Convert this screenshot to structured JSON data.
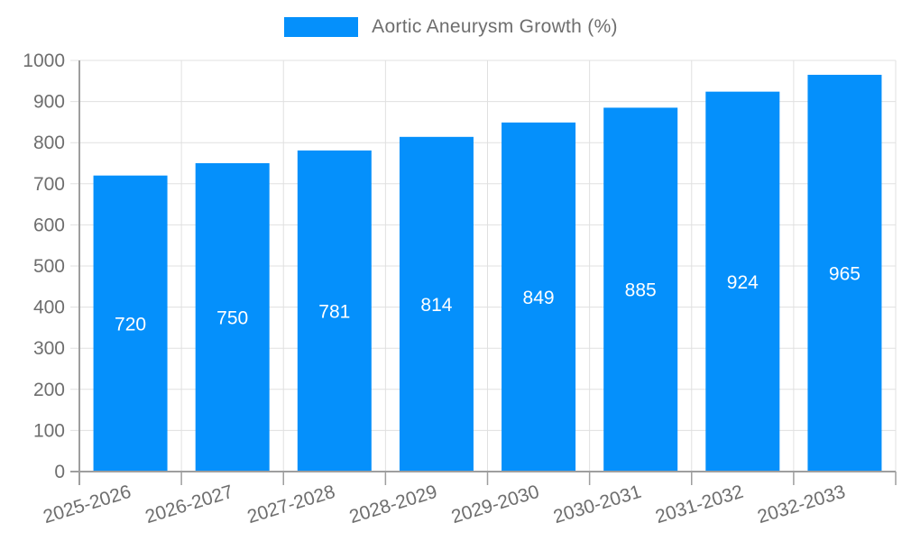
{
  "legend": {
    "label": "Aortic Aneurysm Growth (%)"
  },
  "chart_data": {
    "type": "bar",
    "title": "",
    "series_name": "Aortic Aneurysm Growth (%)",
    "categories": [
      "2025-2026",
      "2026-2027",
      "2027-2028",
      "2028-2029",
      "2029-2030",
      "2030-2031",
      "2031-2032",
      "2032-2033"
    ],
    "values": [
      720,
      750,
      781,
      814,
      849,
      885,
      924,
      965
    ],
    "xlabel": "",
    "ylabel": "",
    "ylim": [
      0,
      1000
    ],
    "ytick_step": 100,
    "grid": true,
    "legend_position": "top-center",
    "x_label_angle_deg": -17,
    "value_labels_inside_bars": true,
    "colors": {
      "bar": "#0590fb",
      "value_label": "#ffffff",
      "axis_label": "#6e6e6e",
      "grid_line": "#e0e0e0",
      "axis_line": "#9e9e9e",
      "background": "#ffffff"
    }
  }
}
